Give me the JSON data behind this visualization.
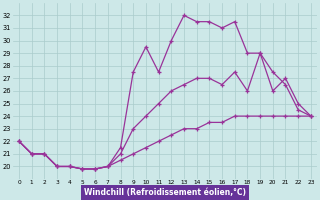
{
  "xlabel": "Windchill (Refroidissement éolien,°C)",
  "background_color": "#cde8e8",
  "line_color": "#993399",
  "xmin": -0.5,
  "xmax": 23.5,
  "ymin": 19.0,
  "ymax": 33.0,
  "yticks": [
    20,
    21,
    22,
    23,
    24,
    25,
    26,
    27,
    28,
    29,
    30,
    31,
    32
  ],
  "xticks": [
    0,
    1,
    2,
    3,
    4,
    5,
    6,
    7,
    8,
    9,
    10,
    11,
    12,
    13,
    14,
    15,
    16,
    17,
    18,
    19,
    20,
    21,
    22,
    23
  ],
  "curve1_x": [
    0,
    1,
    2,
    3,
    4,
    5,
    6,
    7,
    8,
    9,
    10,
    11,
    12,
    13,
    14,
    15,
    16,
    17,
    18,
    19,
    20,
    21,
    22,
    23
  ],
  "curve1_y": [
    22,
    21,
    21,
    20,
    20,
    19.8,
    19.8,
    20,
    20.5,
    21,
    21.5,
    22,
    22.5,
    23,
    23,
    23.5,
    23.5,
    24,
    24,
    24,
    24,
    24,
    24,
    24
  ],
  "curve2_x": [
    0,
    1,
    2,
    3,
    4,
    5,
    6,
    7,
    8,
    9,
    10,
    11,
    12,
    13,
    14,
    15,
    16,
    17,
    18,
    19,
    20,
    21,
    22,
    23
  ],
  "curve2_y": [
    22,
    21,
    21,
    20,
    20,
    19.8,
    19.8,
    20,
    21,
    23,
    24,
    25,
    26,
    26.5,
    27,
    27,
    26.5,
    27.5,
    26,
    29,
    27.5,
    26.5,
    24.5,
    24
  ],
  "curve3_x": [
    0,
    1,
    2,
    3,
    4,
    5,
    6,
    7,
    8,
    9,
    10,
    11,
    12,
    13,
    14,
    15,
    16,
    17,
    18,
    19,
    20,
    21,
    22,
    23
  ],
  "curve3_y": [
    22,
    21,
    21,
    20,
    20,
    19.8,
    19.8,
    20,
    21.5,
    27.5,
    29.5,
    27.5,
    30,
    32,
    31.5,
    31.5,
    31,
    31.5,
    29,
    29,
    26,
    27,
    25,
    24
  ]
}
